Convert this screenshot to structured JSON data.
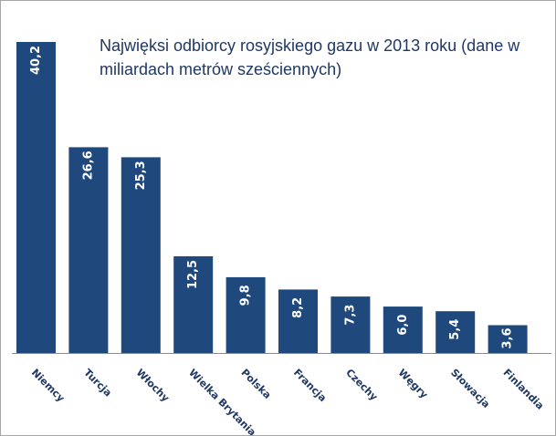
{
  "chart_data": {
    "type": "bar",
    "title": "Najwięksi odbiorcy rosyjskiego gazu w 2013 roku (dane w miliardach metrów sześciennych)",
    "categories": [
      "Niemcy",
      "Turcja",
      "Włochy",
      "Wielka Brytania",
      "Polska",
      "Francja",
      "Czechy",
      "Węgry",
      "Słowacja",
      "Finlandia"
    ],
    "values": [
      40.2,
      26.6,
      25.3,
      12.5,
      9.8,
      8.2,
      7.3,
      6.0,
      5.4,
      3.6
    ],
    "value_labels": [
      "40,2",
      "26,6",
      "25,3",
      "12,5",
      "9,8",
      "8,2",
      "7,3",
      "6,0",
      "5,4",
      "3,6"
    ],
    "xlabel": "",
    "ylabel": "",
    "ylim": [
      0,
      40.2
    ],
    "grid": false,
    "legend": "none",
    "bar_color": "#1f497d"
  }
}
